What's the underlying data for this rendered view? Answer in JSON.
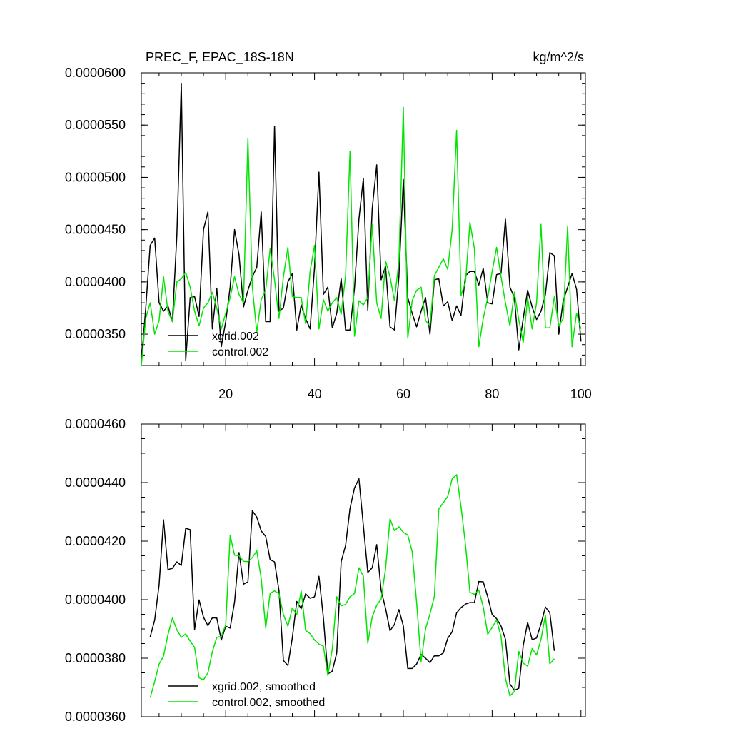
{
  "chart_data": [
    {
      "type": "line",
      "title": "PREC_F, EPAC_18S-18N",
      "units": "kg/m^2/s",
      "xlim": [
        1,
        101
      ],
      "ylim": [
        3.2e-05,
        6e-05
      ],
      "x_ticks": [
        20,
        40,
        60,
        80,
        100
      ],
      "x_tick_labels": [
        "20",
        "40",
        "60",
        "80",
        "100"
      ],
      "y_ticks": [
        3.5e-05,
        4e-05,
        4.5e-05,
        5e-05,
        5.5e-05,
        6e-05
      ],
      "y_tick_labels": [
        "0.0000350",
        "0.0000400",
        "0.0000450",
        "0.0000500",
        "0.0000550",
        "0.0000600"
      ],
      "legend": "bottom-left",
      "series": [
        {
          "name": "xgrid.002",
          "color": "#000000",
          "values": [
            3.23e-05,
            3.75e-05,
            4.35e-05,
            4.42e-05,
            3.8e-05,
            3.72e-05,
            3.77e-05,
            3.62e-05,
            4.45e-05,
            5.9e-05,
            3.25e-05,
            3.85e-05,
            3.86e-05,
            3.67e-05,
            4.5e-05,
            4.67e-05,
            3.55e-05,
            3.94e-05,
            3.38e-05,
            3.62e-05,
            3.95e-05,
            4.5e-05,
            4.26e-05,
            3.76e-05,
            3.92e-05,
            4.05e-05,
            4.14e-05,
            4.67e-05,
            3.62e-05,
            3.62e-05,
            5.49e-05,
            3.72e-05,
            3.75e-05,
            4e-05,
            4.08e-05,
            3.54e-05,
            3.78e-05,
            3.65e-05,
            3.55e-05,
            4.14e-05,
            5.05e-05,
            3.88e-05,
            3.95e-05,
            3.56e-05,
            3.7e-05,
            4.03e-05,
            3.54e-05,
            3.54e-05,
            3.94e-05,
            4.6e-05,
            4.99e-05,
            3.73e-05,
            4.7e-05,
            5.12e-05,
            4.02e-05,
            4.15e-05,
            3.57e-05,
            3.54e-05,
            4.05e-05,
            4.98e-05,
            3.85e-05,
            3.7e-05,
            3.57e-05,
            3.72e-05,
            3.85e-05,
            3.5e-05,
            4.02e-05,
            4.03e-05,
            3.77e-05,
            3.81e-05,
            3.63e-05,
            3.77e-05,
            3.68e-05,
            4.06e-05,
            4.1e-05,
            4.1e-05,
            3.97e-05,
            4.13e-05,
            3.8e-05,
            3.79e-05,
            4.07e-05,
            4.08e-05,
            4.6e-05,
            3.95e-05,
            3.85e-05,
            3.35e-05,
            3.65e-05,
            3.92e-05,
            3.76e-05,
            3.64e-05,
            3.72e-05,
            3.88e-05,
            4.28e-05,
            4.25e-05,
            3.5e-05,
            3.82e-05,
            3.95e-05,
            4.08e-05,
            3.93e-05,
            3.43e-05
          ]
        },
        {
          "name": "control.002",
          "color": "#00e600",
          "values": [
            3.2e-05,
            3.65e-05,
            3.8e-05,
            3.5e-05,
            3.63e-05,
            4.05e-05,
            3.72e-05,
            3.62e-05,
            4e-05,
            4.03e-05,
            4.09e-05,
            3.95e-05,
            3.72e-05,
            3.58e-05,
            3.75e-05,
            3.8e-05,
            3.9e-05,
            3.75e-05,
            3.55e-05,
            3.7e-05,
            3.85e-05,
            4.05e-05,
            3.88e-05,
            3.8e-05,
            5.37e-05,
            3.95e-05,
            3.52e-05,
            3.83e-05,
            3.92e-05,
            4.32e-05,
            4.02e-05,
            3.65e-05,
            4.05e-05,
            4.33e-05,
            3.86e-05,
            3.85e-05,
            3.85e-05,
            3.6e-05,
            4.1e-05,
            4.35e-05,
            3.55e-05,
            3.83e-05,
            3.72e-05,
            3.8e-05,
            3.85e-05,
            3.69e-05,
            4.06e-05,
            5.25e-05,
            3.48e-05,
            3.82e-05,
            3.78e-05,
            3.85e-05,
            4.55e-05,
            3.8e-05,
            3.65e-05,
            4.2e-05,
            4.05e-05,
            3.82e-05,
            4.2e-05,
            5.67e-05,
            3.46e-05,
            3.82e-05,
            3.92e-05,
            3.95e-05,
            3.63e-05,
            3.58e-05,
            4.06e-05,
            4.14e-05,
            4.22e-05,
            4.12e-05,
            4.5e-05,
            5.45e-05,
            3.87e-05,
            4e-05,
            4.57e-05,
            4.32e-05,
            3.38e-05,
            3.65e-05,
            3.85e-05,
            4.1e-05,
            4.33e-05,
            4.05e-05,
            3.8e-05,
            3.58e-05,
            3.9e-05,
            3.64e-05,
            3.42e-05,
            3.85e-05,
            3.55e-05,
            3.8e-05,
            4.55e-05,
            3.56e-05,
            3.56e-05,
            3.86e-05,
            3.58e-05,
            3.65e-05,
            4.53e-05,
            3.38e-05,
            3.7e-05,
            3.55e-05
          ]
        }
      ]
    },
    {
      "type": "line",
      "xlim": [
        1,
        101
      ],
      "ylim": [
        3.6e-05,
        4.6e-05
      ],
      "x_ticks": [
        20,
        40,
        60,
        80,
        100
      ],
      "y_ticks": [
        3.6e-05,
        3.8e-05,
        4e-05,
        4.2e-05,
        4.4e-05,
        4.6e-05
      ],
      "y_tick_labels": [
        "0.0000360",
        "0.0000380",
        "0.0000400",
        "0.0000420",
        "0.0000440",
        "0.0000460"
      ],
      "legend": "bottom-left",
      "series": [
        {
          "name": "xgrid.002, smoothed",
          "color": "#000000",
          "x_start": 3,
          "values": [
            3.873e-05,
            3.93e-05,
            4.051e-05,
            4.273e-05,
            4.103e-05,
            4.107e-05,
            4.129e-05,
            4.117e-05,
            4.244e-05,
            4.239e-05,
            3.898e-05,
            3.999e-05,
            3.94e-05,
            3.911e-05,
            3.938e-05,
            3.937e-05,
            3.862e-05,
            3.909e-05,
            3.903e-05,
            3.992e-05,
            4.161e-05,
            4.053e-05,
            4.061e-05,
            4.304e-05,
            4.282e-05,
            4.235e-05,
            4.216e-05,
            4.137e-05,
            4.129e-05,
            4.031e-05,
            3.792e-05,
            3.775e-05,
            3.87e-05,
            3.994e-05,
            3.969e-05,
            4.02e-05,
            4.005e-05,
            4.01e-05,
            4.08e-05,
            3.938e-05,
            3.746e-05,
            3.756e-05,
            3.818e-05,
            4.13e-05,
            4.185e-05,
            4.312e-05,
            4.382e-05,
            4.413e-05,
            4.253e-05,
            4.093e-05,
            4.109e-05,
            4.188e-05,
            4.032e-05,
            3.97e-05,
            3.894e-05,
            3.915e-05,
            3.966e-05,
            3.91e-05,
            3.765e-05,
            3.765e-05,
            3.78e-05,
            3.813e-05,
            3.8e-05,
            3.785e-05,
            3.808e-05,
            3.808e-05,
            3.818e-05,
            3.868e-05,
            3.89e-05,
            3.955e-05,
            3.973e-05,
            3.985e-05,
            3.99e-05,
            3.99e-05,
            4.062e-05,
            4.061e-05,
            4.01e-05,
            3.949e-05,
            3.935e-05,
            3.91e-05,
            3.865e-05,
            3.712e-05,
            3.69e-05,
            3.697e-05,
            3.843e-05,
            3.922e-05,
            3.863e-05,
            3.869e-05,
            3.917e-05,
            3.975e-05,
            3.955e-05,
            3.825e-05
          ]
        },
        {
          "name": "control.002, smoothed",
          "color": "#00e600",
          "x_start": 3,
          "values": [
            3.665e-05,
            3.72e-05,
            3.78e-05,
            3.807e-05,
            3.88e-05,
            3.937e-05,
            3.897e-05,
            3.871e-05,
            3.883e-05,
            3.858e-05,
            3.837e-05,
            3.733e-05,
            3.726e-05,
            3.75e-05,
            3.822e-05,
            3.871e-05,
            3.875e-05,
            3.914e-05,
            4.22e-05,
            4.152e-05,
            4.15e-05,
            4.131e-05,
            4.13e-05,
            4.144e-05,
            4.167e-05,
            4.073e-05,
            3.903e-05,
            4.022e-05,
            4.03e-05,
            4.02e-05,
            3.949e-05,
            3.909e-05,
            3.972e-05,
            3.948e-05,
            4.03e-05,
            3.895e-05,
            3.884e-05,
            3.862e-05,
            3.848e-05,
            3.841e-05,
            3.741e-05,
            3.832e-05,
            4.01e-05,
            3.979e-05,
            3.984e-05,
            4.01e-05,
            4.021e-05,
            4.109e-05,
            4.08e-05,
            3.851e-05,
            3.941e-05,
            3.981e-05,
            4.002e-05,
            4.106e-05,
            4.276e-05,
            4.236e-05,
            4.249e-05,
            4.23e-05,
            4.221e-05,
            4.164e-05,
            3.99e-05,
            3.788e-05,
            3.9e-05,
            3.951e-05,
            4.012e-05,
            4.31e-05,
            4.331e-05,
            4.353e-05,
            4.413e-05,
            4.427e-05,
            4.318e-05,
            4.187e-05,
            4.025e-05,
            4.018e-05,
            4.033e-05,
            3.975e-05,
            3.882e-05,
            3.905e-05,
            3.93e-05,
            3.875e-05,
            3.73e-05,
            3.671e-05,
            3.686e-05,
            3.823e-05,
            3.783e-05,
            3.773e-05,
            3.833e-05,
            3.811e-05,
            3.864e-05,
            3.947e-05,
            3.781e-05,
            3.798e-05
          ]
        }
      ]
    }
  ]
}
